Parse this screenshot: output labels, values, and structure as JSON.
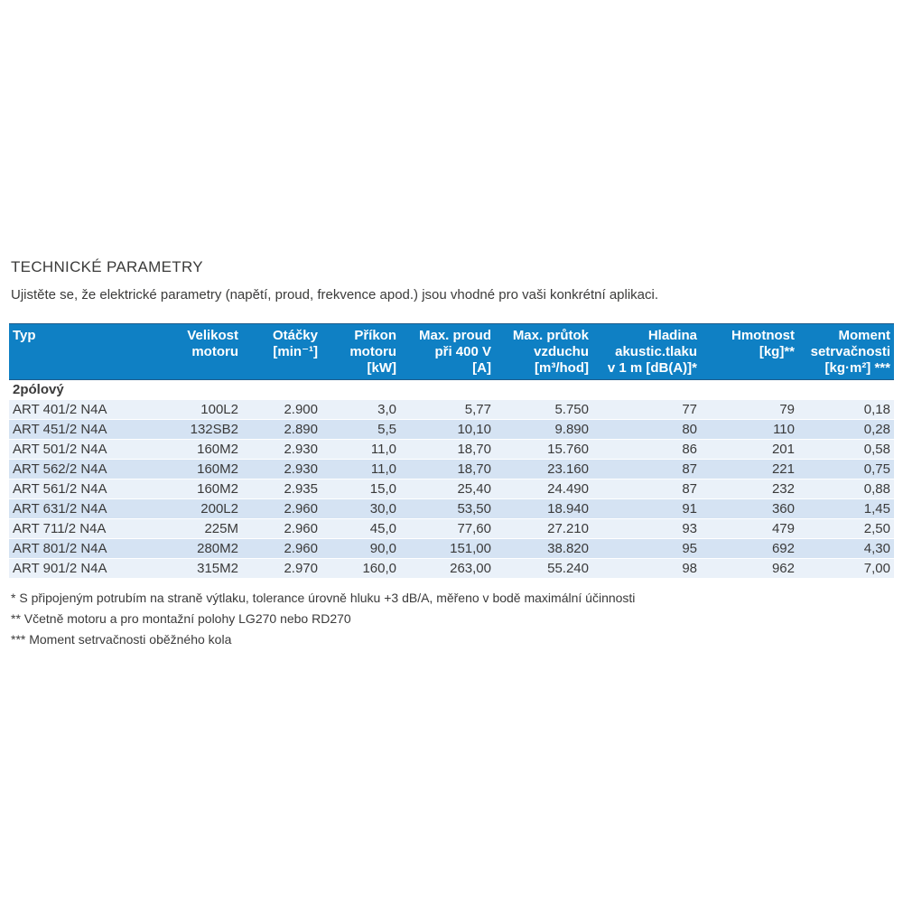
{
  "header": {
    "title": "TECHNICKÉ PARAMETRY",
    "subtitle": "Ujistěte se, že elektrické parametry (napětí, proud, frekvence apod.) jsou vhodné pro vaši konkrétní aplikaci."
  },
  "table": {
    "columns": [
      {
        "id": "typ",
        "align": "left",
        "lines": [
          "Typ"
        ]
      },
      {
        "id": "velikost-motoru",
        "align": "right",
        "lines": [
          "Velikost",
          "motoru"
        ]
      },
      {
        "id": "otacky",
        "align": "right",
        "lines": [
          "Otáčky",
          "[min⁻¹]"
        ]
      },
      {
        "id": "prikon-motoru",
        "align": "right",
        "lines": [
          "Příkon",
          "motoru",
          "[kW]"
        ]
      },
      {
        "id": "max-proud",
        "align": "right",
        "lines": [
          "Max. proud",
          "při 400 V",
          "[A]"
        ]
      },
      {
        "id": "max-prutok-vzduchu",
        "align": "right",
        "lines": [
          "Max. průtok",
          "vzduchu",
          "[m³/hod]"
        ]
      },
      {
        "id": "hladina-akustickeho-tlaku",
        "align": "right",
        "lines": [
          "Hladina",
          "akustic.tlaku",
          "v 1 m [dB(A)]*"
        ]
      },
      {
        "id": "hmotnost",
        "align": "right",
        "lines": [
          "Hmotnost",
          "[kg]**"
        ]
      },
      {
        "id": "moment-setrvacnosti",
        "align": "right",
        "lines": [
          "Moment",
          "setrvačnosti",
          "[kg·m²] ***"
        ]
      }
    ],
    "section_label": "2pólový",
    "rows": [
      [
        "ART 401/2 N4A",
        "100L2",
        "2.900",
        "3,0",
        "5,77",
        "5.750",
        "77",
        "79",
        "0,18"
      ],
      [
        "ART 451/2 N4A",
        "132SB2",
        "2.890",
        "5,5",
        "10,10",
        "9.890",
        "80",
        "110",
        "0,28"
      ],
      [
        "ART 501/2 N4A",
        "160M2",
        "2.930",
        "11,0",
        "18,70",
        "15.760",
        "86",
        "201",
        "0,58"
      ],
      [
        "ART 562/2 N4A",
        "160M2",
        "2.930",
        "11,0",
        "18,70",
        "23.160",
        "87",
        "221",
        "0,75"
      ],
      [
        "ART 561/2 N4A",
        "160M2",
        "2.935",
        "15,0",
        "25,40",
        "24.490",
        "87",
        "232",
        "0,88"
      ],
      [
        "ART 631/2 N4A",
        "200L2",
        "2.960",
        "30,0",
        "53,50",
        "18.940",
        "91",
        "360",
        "1,45"
      ],
      [
        "ART 711/2 N4A",
        "225M",
        "2.960",
        "45,0",
        "77,60",
        "27.210",
        "93",
        "479",
        "2,50"
      ],
      [
        "ART 801/2 N4A",
        "280M2",
        "2.960",
        "90,0",
        "151,00",
        "38.820",
        "95",
        "692",
        "4,30"
      ],
      [
        "ART 901/2 N4A",
        "315M2",
        "2.970",
        "160,0",
        "263,00",
        "55.240",
        "98",
        "962",
        "7,00"
      ]
    ]
  },
  "footnotes": [
    "* S připojeným potrubím na straně výtlaku, tolerance úrovně hluku +3 dB/A, měřeno v bodě maximální účinnosti",
    "** Včetně motoru a pro montažní polohy LG270 nebo RD270",
    "*** Moment setrvačnosti oběžného kola"
  ],
  "colors": {
    "header_bg": "#0f80c4",
    "header_text": "#ffffff",
    "row_odd": "#eaf1f9",
    "row_even": "#d5e3f3",
    "text": "#3a3a3a"
  }
}
